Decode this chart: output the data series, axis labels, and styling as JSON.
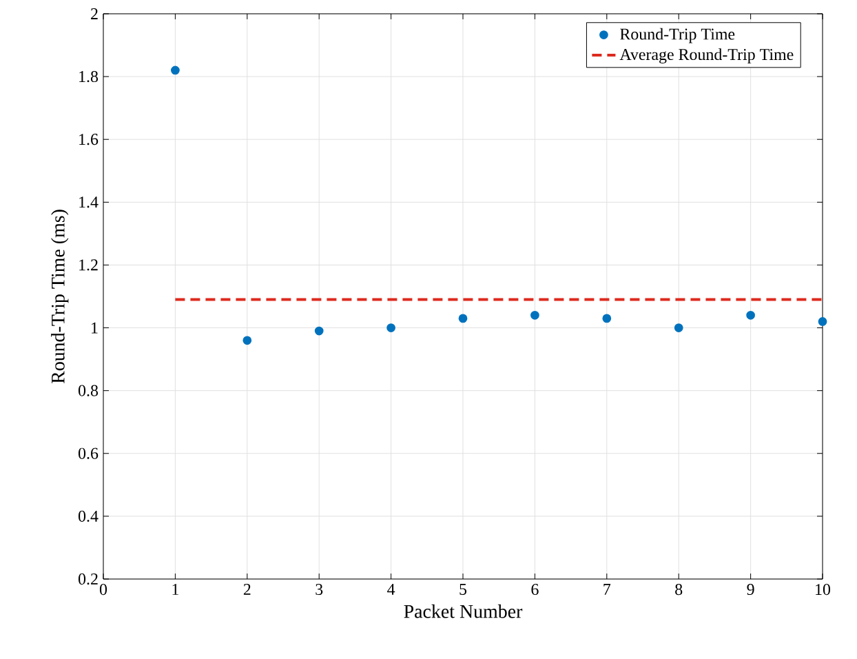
{
  "chart_data": {
    "type": "scatter",
    "xlabel": "Packet Number",
    "ylabel": "Round-Trip Time (ms)",
    "x": [
      1,
      2,
      3,
      4,
      5,
      6,
      7,
      8,
      9,
      10
    ],
    "series": [
      {
        "name": "Round-Trip Time",
        "color": "#0072bd",
        "marker": "circle",
        "values": [
          1.82,
          0.96,
          0.99,
          1.0,
          1.03,
          1.04,
          1.03,
          1.0,
          1.04,
          1.02
        ]
      },
      {
        "name": "Average Round-Trip Time",
        "type": "line",
        "color": "#dd2a1e",
        "marker": "none",
        "line_style": "dashed",
        "x": [
          1,
          10
        ],
        "values": [
          1.09,
          1.09
        ]
      }
    ],
    "xlim": [
      0,
      10
    ],
    "ylim": [
      0.2,
      2
    ],
    "xticks": [
      0,
      1,
      2,
      3,
      4,
      5,
      6,
      7,
      8,
      9,
      10
    ],
    "yticks": [
      0.2,
      0.4,
      0.6,
      0.8,
      1,
      1.2,
      1.4,
      1.6,
      1.8,
      2
    ],
    "grid": true,
    "legend": "top right"
  }
}
